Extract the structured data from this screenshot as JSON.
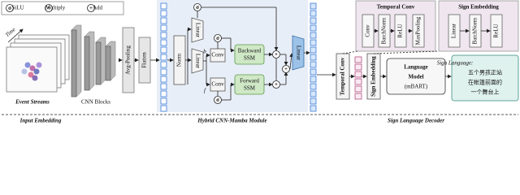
{
  "legend": [
    {
      "symbol": "σ",
      "label": "SiLU"
    },
    {
      "symbol": "×",
      "label": "Multiply"
    },
    {
      "symbol": "+",
      "label": "Add"
    }
  ],
  "input_embedding": {
    "time_label": "Time",
    "event_label": "Event Streams",
    "cnn_label": "CNN Blocks",
    "avg_pooling": "Avg-Pooling",
    "flatten": "Flatten"
  },
  "mamba": {
    "norm": "Norm",
    "linear_top": "Linear",
    "linear_mid": "Linear",
    "conv_top": "Conv",
    "conv_bottom": "Conv",
    "backward_ssm": [
      "Backward",
      "SSM"
    ],
    "forward_ssm": [
      "Forward",
      "SSM"
    ],
    "linear_out": "Linear",
    "b": "b",
    "f": "f"
  },
  "temporal_conv_detail": {
    "title": "Temporal Conv",
    "layers": [
      "Conv",
      "BatchNorm",
      "ReLU",
      "MaxPooling"
    ]
  },
  "sign_embedding_detail": {
    "title": "Sign Embedding",
    "layers": [
      "Linear",
      "BatchNorm",
      "ReLU"
    ]
  },
  "decoder": {
    "temporal_conv": "Temporal Conv",
    "sign_embedding": "Sign Embedding",
    "language_model": [
      "Language",
      "Model",
      "(mBART)"
    ],
    "output_title": "Sign Language:",
    "output_lines": [
      "五个男孩正站",
      "在帐篷前面的",
      "一个舞台上"
    ]
  },
  "sections": [
    "Input Embedding",
    "Hybrid CNN-Mamba Module",
    "Sign Language Decoder"
  ]
}
